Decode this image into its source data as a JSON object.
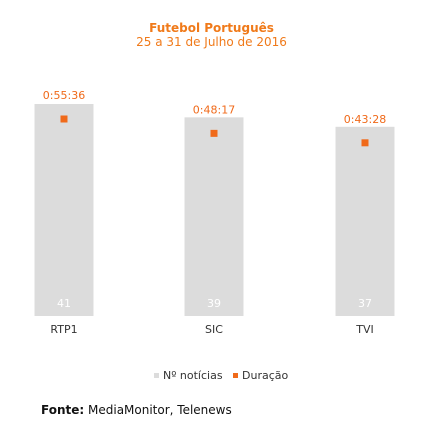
{
  "chart_data": {
    "type": "bar",
    "title": "Futebol Português",
    "subtitle": "25 a 31 de Julho de 2016",
    "categories": [
      "RTP1",
      "SIC",
      "TVI"
    ],
    "series": [
      {
        "name": "Nº notícias",
        "kind": "bar",
        "values": [
          41,
          39,
          37
        ],
        "color": "#dcdcdc",
        "data_labels": [
          "41",
          "39",
          "37"
        ]
      },
      {
        "name": "Duração",
        "kind": "marker",
        "values": [
          3336,
          2897,
          2608
        ],
        "data_labels": [
          "0:55:36",
          "0:48:17",
          "0:43:28"
        ],
        "unit": "h:mm:ss",
        "color": "#f06a1a"
      }
    ],
    "ylim_bars": [
      0,
      41
    ],
    "legend_position": "bottom",
    "grid": false
  },
  "colors": {
    "accent": "#f07a1a",
    "bar": "#dcdcdc",
    "marker": "#f06a1a",
    "bar_label": "#ffffff",
    "axis_text": "#333333"
  },
  "source": {
    "label": "Fonte:",
    "text": "MediaMonitor, Telenews"
  }
}
